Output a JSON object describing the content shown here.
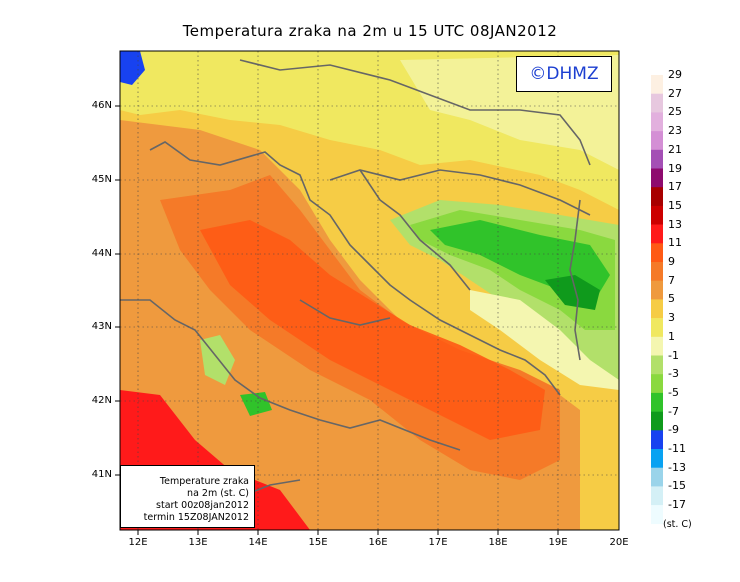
{
  "title": "Temperatura zraka na 2m u 15 UTC 08JAN2012",
  "logo": "©DHMZ",
  "info_box": {
    "line1": "Temperature zraka",
    "line2": "na 2m (st. C)",
    "line3": "start 00z08jan2012",
    "line4": "termin 15Z08JAN2012"
  },
  "axes": {
    "lat_labels": [
      "46N",
      "45N",
      "44N",
      "43N",
      "42N",
      "41N"
    ],
    "lon_labels": [
      "12E",
      "13E",
      "14E",
      "15E",
      "16E",
      "17E",
      "18E",
      "19E",
      "20E"
    ]
  },
  "legend": {
    "unit": "(st. C)",
    "labels": [
      "29",
      "27",
      "25",
      "23",
      "21",
      "19",
      "17",
      "15",
      "13",
      "11",
      "9",
      "7",
      "5",
      "3",
      "1",
      "-1",
      "-3",
      "-5",
      "-7",
      "-9",
      "-11",
      "-13",
      "-15",
      "-17"
    ],
    "colors": [
      "#fdf0e2",
      "#e7c8df",
      "#e2b0de",
      "#d48fd5",
      "#a44fb5",
      "#8e0a6e",
      "#a80000",
      "#cc0000",
      "#ff1a1a",
      "#ff5a14",
      "#f57a28",
      "#ef9a3e",
      "#f6cc45",
      "#f0e860",
      "#f4f6b0",
      "#b2e06a",
      "#8ad93f",
      "#30c32a",
      "#0f9a1c",
      "#1842f0",
      "#08a2f2",
      "#9ad4ea",
      "#d4f0f6",
      "#eefcff"
    ]
  }
}
